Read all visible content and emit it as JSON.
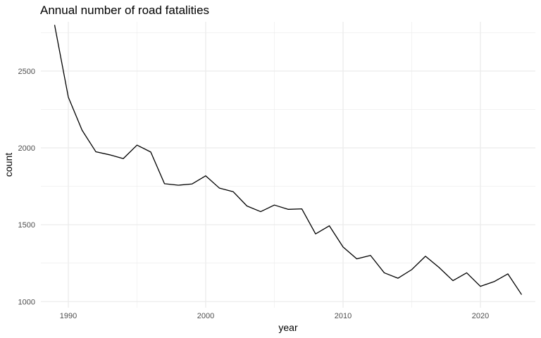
{
  "chart_data": {
    "type": "line",
    "title": "Annual number of road fatalities",
    "xlabel": "year",
    "ylabel": "count",
    "xlim": [
      1988,
      2024
    ],
    "ylim": [
      960,
      2820
    ],
    "x_ticks": [
      1990,
      2000,
      2010,
      2020
    ],
    "y_ticks": [
      1000,
      1500,
      2000,
      2500
    ],
    "grid": true,
    "legend": "none",
    "line_color": "#000000",
    "grid_color": "#ebebeb",
    "series": [
      {
        "x": [
          1989,
          1990,
          1991,
          1992,
          1993,
          1994,
          1995,
          1996,
          1997,
          1998,
          1999,
          2000,
          2001,
          2002,
          2003,
          2004,
          2005,
          2006,
          2007,
          2008,
          2009,
          2010,
          2011,
          2012,
          2013,
          2014,
          2015,
          2016,
          2017,
          2018,
          2019,
          2020,
          2021,
          2022,
          2023
        ],
        "values": [
          2800,
          2330,
          2115,
          1975,
          1955,
          1930,
          2018,
          1973,
          1767,
          1757,
          1765,
          1818,
          1738,
          1715,
          1622,
          1585,
          1628,
          1600,
          1603,
          1440,
          1493,
          1355,
          1278,
          1300,
          1187,
          1152,
          1208,
          1295,
          1221,
          1136,
          1187,
          1099,
          1130,
          1180,
          1045
        ]
      }
    ]
  }
}
